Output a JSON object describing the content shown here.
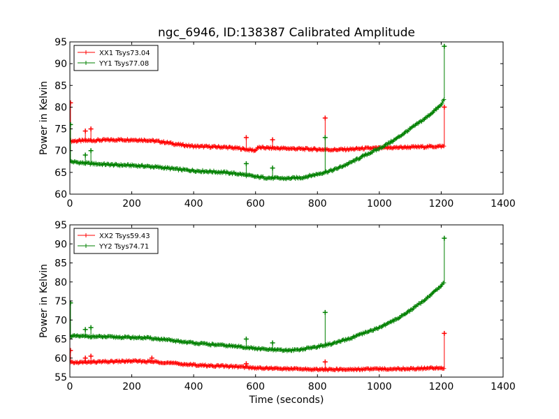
{
  "figure": {
    "title": "ngc_6946, ID:138387 Calibrated Amplitude"
  },
  "chart_data": [
    {
      "type": "line",
      "title": "ngc_6946, ID:138387 Calibrated Amplitude",
      "xlabel": "",
      "ylabel": "Power in Kelvin",
      "xlim": [
        0,
        1400
      ],
      "ylim": [
        60,
        95
      ],
      "xticks": [
        0,
        200,
        400,
        600,
        800,
        1000,
        1200,
        1400
      ],
      "yticks": [
        60,
        65,
        70,
        75,
        80,
        85,
        90,
        95
      ],
      "grid": false,
      "legend": "top-left",
      "series": [
        {
          "name": "XX1 Tsys73.04",
          "color": "#ff0000",
          "x": [
            0,
            50,
            100,
            150,
            200,
            250,
            300,
            350,
            400,
            450,
            500,
            550,
            600,
            605,
            650,
            700,
            750,
            800,
            850,
            900,
            950,
            1000,
            1050,
            1100,
            1150,
            1200,
            1210
          ],
          "y": [
            72.2,
            72.3,
            72.4,
            72.5,
            72.5,
            72.4,
            72.0,
            71.4,
            71.0,
            70.9,
            70.8,
            70.5,
            70.0,
            70.7,
            70.6,
            70.5,
            70.4,
            70.3,
            70.2,
            70.3,
            70.5,
            70.6,
            70.7,
            70.8,
            70.9,
            71.0,
            71.0
          ],
          "spikes": [
            [
              2,
              81
            ],
            [
              50,
              74.5
            ],
            [
              68,
              75
            ],
            [
              570,
              73
            ],
            [
              655,
              72.5
            ],
            [
              825,
              77.5
            ],
            [
              1210,
              80
            ]
          ]
        },
        {
          "name": "YY1 Tsys77.08",
          "color": "#008000",
          "x": [
            0,
            50,
            100,
            150,
            200,
            250,
            300,
            350,
            400,
            450,
            500,
            550,
            600,
            650,
            700,
            750,
            800,
            850,
            900,
            950,
            1000,
            1050,
            1100,
            1150,
            1200,
            1210
          ],
          "y": [
            67.5,
            67.1,
            66.9,
            66.7,
            66.6,
            66.4,
            66.1,
            65.7,
            65.4,
            65.2,
            65.0,
            64.6,
            64.0,
            63.7,
            63.6,
            63.8,
            64.6,
            65.5,
            67.0,
            68.8,
            70.5,
            72.5,
            75.0,
            77.5,
            80.5,
            82.0
          ],
          "spikes": [
            [
              2,
              76
            ],
            [
              50,
              69
            ],
            [
              68,
              70
            ],
            [
              570,
              67
            ],
            [
              655,
              66
            ],
            [
              825,
              73
            ],
            [
              1210,
              94
            ]
          ]
        }
      ]
    },
    {
      "type": "line",
      "title": "",
      "xlabel": "Time (seconds)",
      "ylabel": "Power in Kelvin",
      "xlim": [
        0,
        1400
      ],
      "ylim": [
        55,
        95
      ],
      "xticks": [
        0,
        200,
        400,
        600,
        800,
        1000,
        1200,
        1400
      ],
      "yticks": [
        55,
        60,
        65,
        70,
        75,
        80,
        85,
        90,
        95
      ],
      "grid": false,
      "legend": "top-left",
      "series": [
        {
          "name": "XX2 Tsys59.43",
          "color": "#ff0000",
          "x": [
            0,
            50,
            100,
            150,
            200,
            250,
            300,
            350,
            400,
            450,
            500,
            550,
            600,
            650,
            700,
            750,
            800,
            850,
            900,
            950,
            1000,
            1050,
            1100,
            1150,
            1200,
            1210
          ],
          "y": [
            58.8,
            58.9,
            59.0,
            59.1,
            59.2,
            59.1,
            58.9,
            58.5,
            58.2,
            58.0,
            57.9,
            57.7,
            57.4,
            57.3,
            57.2,
            57.1,
            57.0,
            57.0,
            57.0,
            57.1,
            57.1,
            57.2,
            57.2,
            57.3,
            57.4,
            57.4
          ],
          "spikes": [
            [
              2,
              62
            ],
            [
              50,
              60
            ],
            [
              68,
              60.5
            ],
            [
              265,
              60
            ],
            [
              570,
              58.5
            ],
            [
              825,
              59
            ],
            [
              1210,
              66.5
            ]
          ]
        },
        {
          "name": "YY2 Tsys74.71",
          "color": "#008000",
          "x": [
            0,
            50,
            100,
            150,
            200,
            250,
            300,
            350,
            400,
            450,
            500,
            550,
            600,
            650,
            700,
            750,
            800,
            850,
            900,
            950,
            1000,
            1050,
            1100,
            1150,
            1200,
            1210
          ],
          "y": [
            65.8,
            65.7,
            65.6,
            65.5,
            65.4,
            65.3,
            64.9,
            64.4,
            64.0,
            63.6,
            63.3,
            63.0,
            62.5,
            62.2,
            62.0,
            62.3,
            63.0,
            63.8,
            65.0,
            66.5,
            68.0,
            70.0,
            72.5,
            75.5,
            79.0,
            80.0
          ],
          "spikes": [
            [
              2,
              74.5
            ],
            [
              50,
              67.5
            ],
            [
              68,
              68
            ],
            [
              570,
              65
            ],
            [
              655,
              64
            ],
            [
              825,
              72
            ],
            [
              1210,
              91.5
            ]
          ]
        }
      ]
    }
  ]
}
